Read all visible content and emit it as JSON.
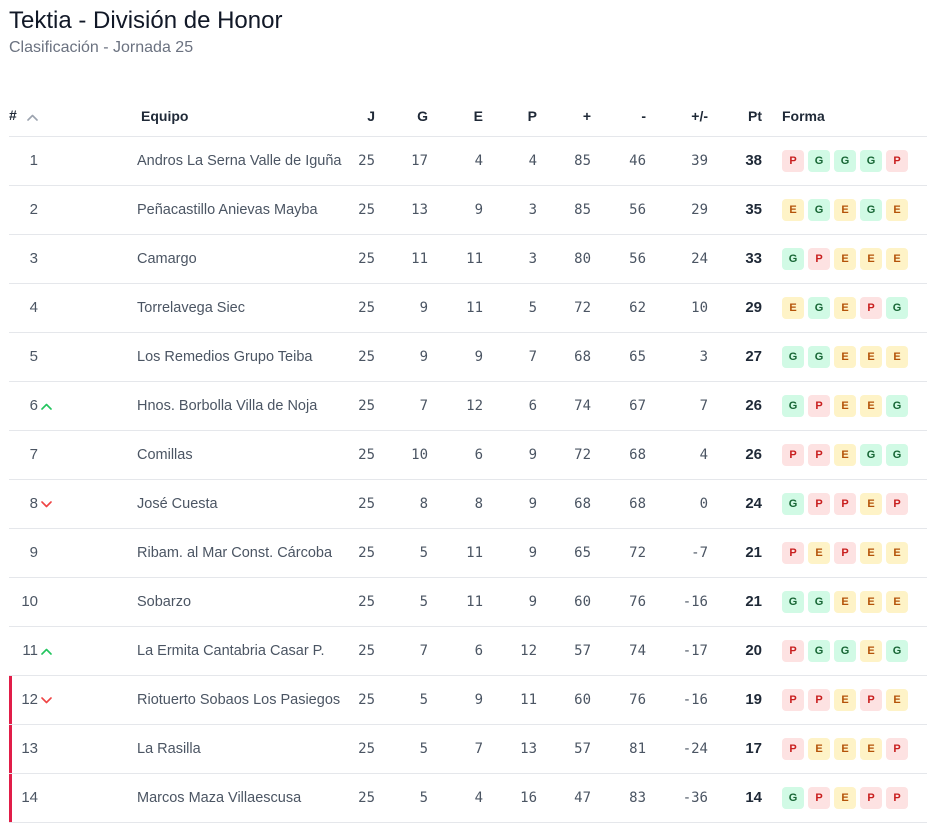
{
  "header": {
    "title": "Tektia - División de Honor",
    "subtitle": "Clasificación - Jornada 25"
  },
  "columns": {
    "pos": "#",
    "team": "Equipo",
    "played": "J",
    "won": "G",
    "drawn": "E",
    "lost": "P",
    "goals_for": "+",
    "goals_against": "-",
    "goal_diff": "+/-",
    "points": "Pt",
    "form": "Forma"
  },
  "icons": {
    "sort": "chevron-up-icon",
    "up": "trend-up-icon",
    "down": "trend-down-icon"
  },
  "colors": {
    "up": "#22c55e",
    "down": "#ef4444",
    "relegation": "#e11d48"
  },
  "rows": [
    {
      "pos": "1",
      "team": "Andros La Serna Valle de Iguña",
      "j": "25",
      "g": "17",
      "e": "4",
      "p": "4",
      "gf": "85",
      "ga": "46",
      "diff": "39",
      "pts": "38",
      "form": [
        "P",
        "G",
        "G",
        "G",
        "P"
      ],
      "trend": "",
      "zone": ""
    },
    {
      "pos": "2",
      "team": "Peñacastillo Anievas Mayba",
      "j": "25",
      "g": "13",
      "e": "9",
      "p": "3",
      "gf": "85",
      "ga": "56",
      "diff": "29",
      "pts": "35",
      "form": [
        "E",
        "G",
        "E",
        "G",
        "E"
      ],
      "trend": "",
      "zone": ""
    },
    {
      "pos": "3",
      "team": "Camargo",
      "j": "25",
      "g": "11",
      "e": "11",
      "p": "3",
      "gf": "80",
      "ga": "56",
      "diff": "24",
      "pts": "33",
      "form": [
        "G",
        "P",
        "E",
        "E",
        "E"
      ],
      "trend": "",
      "zone": ""
    },
    {
      "pos": "4",
      "team": "Torrelavega Siec",
      "j": "25",
      "g": "9",
      "e": "11",
      "p": "5",
      "gf": "72",
      "ga": "62",
      "diff": "10",
      "pts": "29",
      "form": [
        "E",
        "G",
        "E",
        "P",
        "G"
      ],
      "trend": "",
      "zone": ""
    },
    {
      "pos": "5",
      "team": "Los Remedios Grupo Teiba",
      "j": "25",
      "g": "9",
      "e": "9",
      "p": "7",
      "gf": "68",
      "ga": "65",
      "diff": "3",
      "pts": "27",
      "form": [
        "G",
        "G",
        "E",
        "E",
        "E"
      ],
      "trend": "",
      "zone": ""
    },
    {
      "pos": "6",
      "team": "Hnos. Borbolla Villa de Noja",
      "j": "25",
      "g": "7",
      "e": "12",
      "p": "6",
      "gf": "74",
      "ga": "67",
      "diff": "7",
      "pts": "26",
      "form": [
        "G",
        "P",
        "E",
        "E",
        "G"
      ],
      "trend": "up",
      "zone": ""
    },
    {
      "pos": "7",
      "team": "Comillas",
      "j": "25",
      "g": "10",
      "e": "6",
      "p": "9",
      "gf": "72",
      "ga": "68",
      "diff": "4",
      "pts": "26",
      "form": [
        "P",
        "P",
        "E",
        "G",
        "G"
      ],
      "trend": "",
      "zone": ""
    },
    {
      "pos": "8",
      "team": "José Cuesta",
      "j": "25",
      "g": "8",
      "e": "8",
      "p": "9",
      "gf": "68",
      "ga": "68",
      "diff": "0",
      "pts": "24",
      "form": [
        "G",
        "P",
        "P",
        "E",
        "P"
      ],
      "trend": "down",
      "zone": ""
    },
    {
      "pos": "9",
      "team": "Ribam. al Mar Const. Cárcoba",
      "j": "25",
      "g": "5",
      "e": "11",
      "p": "9",
      "gf": "65",
      "ga": "72",
      "diff": "-7",
      "pts": "21",
      "form": [
        "P",
        "E",
        "P",
        "E",
        "E"
      ],
      "trend": "",
      "zone": ""
    },
    {
      "pos": "10",
      "team": "Sobarzo",
      "j": "25",
      "g": "5",
      "e": "11",
      "p": "9",
      "gf": "60",
      "ga": "76",
      "diff": "-16",
      "pts": "21",
      "form": [
        "G",
        "G",
        "E",
        "E",
        "E"
      ],
      "trend": "",
      "zone": ""
    },
    {
      "pos": "11",
      "team": "La Ermita Cantabria Casar P.",
      "j": "25",
      "g": "7",
      "e": "6",
      "p": "12",
      "gf": "57",
      "ga": "74",
      "diff": "-17",
      "pts": "20",
      "form": [
        "P",
        "G",
        "G",
        "E",
        "G"
      ],
      "trend": "up",
      "zone": ""
    },
    {
      "pos": "12",
      "team": "Riotuerto Sobaos Los Pasiegos",
      "j": "25",
      "g": "5",
      "e": "9",
      "p": "11",
      "gf": "60",
      "ga": "76",
      "diff": "-16",
      "pts": "19",
      "form": [
        "P",
        "P",
        "E",
        "P",
        "E"
      ],
      "trend": "down",
      "zone": "relegation"
    },
    {
      "pos": "13",
      "team": "La Rasilla",
      "j": "25",
      "g": "5",
      "e": "7",
      "p": "13",
      "gf": "57",
      "ga": "81",
      "diff": "-24",
      "pts": "17",
      "form": [
        "P",
        "E",
        "E",
        "E",
        "P"
      ],
      "trend": "",
      "zone": "relegation"
    },
    {
      "pos": "14",
      "team": "Marcos Maza Villaescusa",
      "j": "25",
      "g": "5",
      "e": "4",
      "p": "16",
      "gf": "47",
      "ga": "83",
      "diff": "-36",
      "pts": "14",
      "form": [
        "G",
        "P",
        "E",
        "P",
        "P"
      ],
      "trend": "",
      "zone": "relegation"
    }
  ]
}
